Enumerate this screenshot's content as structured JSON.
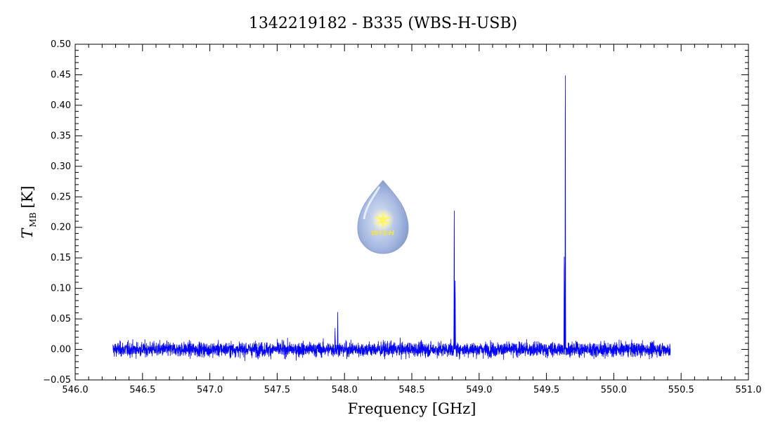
{
  "chart_data": {
    "type": "line",
    "title": "1342219182 - B335 (WBS-H-USB)",
    "xlabel": "Frequency [GHz]",
    "ylabel_main": "T",
    "ylabel_sub": "MB",
    "ylabel_unit": "[K]",
    "xlim": [
      546.0,
      551.0
    ],
    "ylim": [
      -0.05,
      0.5
    ],
    "x_ticks": [
      "546.0",
      "546.5",
      "547.0",
      "547.5",
      "548.0",
      "548.5",
      "549.0",
      "549.5",
      "550.0",
      "550.5",
      "551.0"
    ],
    "y_ticks": [
      "−0.05",
      "0.00",
      "0.05",
      "0.10",
      "0.15",
      "0.20",
      "0.25",
      "0.30",
      "0.35",
      "0.40",
      "0.45",
      "0.50"
    ],
    "series_color": "#0000ff",
    "data_range": [
      546.28,
      550.42
    ],
    "noise_rms": 0.006,
    "peaks": [
      {
        "x": 547.95,
        "y": 0.056
      },
      {
        "x": 547.93,
        "y": 0.035
      },
      {
        "x": 548.815,
        "y": 0.225
      },
      {
        "x": 548.822,
        "y": 0.108
      },
      {
        "x": 549.64,
        "y": 0.449
      },
      {
        "x": 549.632,
        "y": 0.152
      }
    ],
    "grid": false
  },
  "logo": {
    "text": "WISH",
    "body_color": "#9fb3dc",
    "star_color": "#fff36a"
  }
}
